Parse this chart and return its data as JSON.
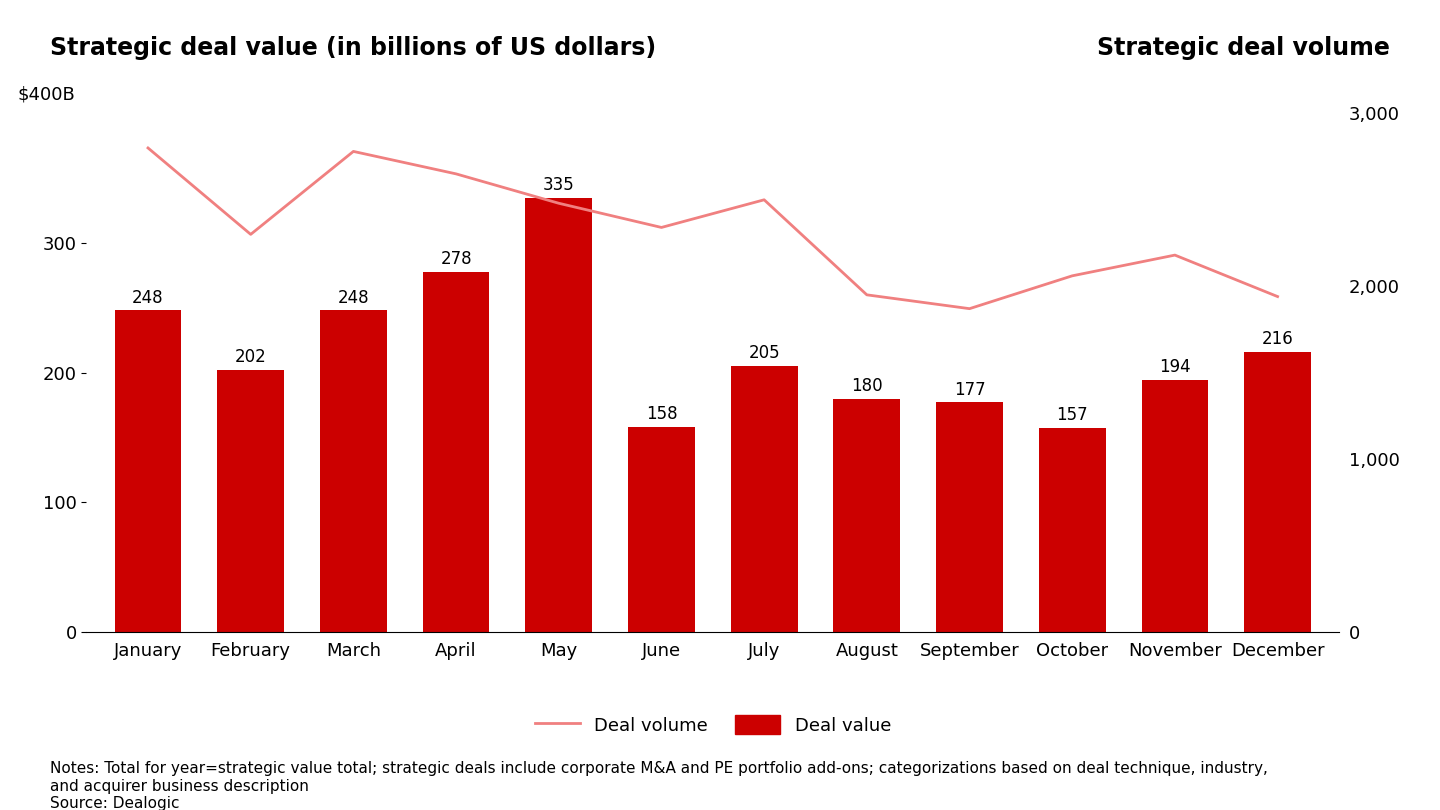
{
  "months": [
    "January",
    "February",
    "March",
    "April",
    "May",
    "June",
    "July",
    "August",
    "September",
    "October",
    "November",
    "December"
  ],
  "deal_value": [
    248,
    202,
    248,
    278,
    335,
    158,
    205,
    180,
    177,
    157,
    194,
    216
  ],
  "deal_volume": [
    2800,
    2300,
    2780,
    2650,
    2480,
    2340,
    2500,
    1950,
    1870,
    2060,
    2180,
    1940
  ],
  "bar_color": "#cc0000",
  "line_color": "#f08080",
  "title_left": "Strategic deal value (in billions of US dollars)",
  "title_right": "Strategic deal volume",
  "ylabel_annotation": "$400B",
  "left_yticks": [
    0,
    100,
    200,
    300
  ],
  "right_yticks": [
    0,
    1000,
    2000,
    3000
  ],
  "left_ylim": [
    0,
    400
  ],
  "right_ylim": [
    0,
    3000
  ],
  "notes": "Notes: Total for year=strategic value total; strategic deals include corporate M&A and PE portfolio add-ons; categorizations based on deal technique, industry,\nand acquirer business description\nSource: Dealogic",
  "legend_line_label": "Deal volume",
  "legend_bar_label": "Deal value",
  "background_color": "#ffffff",
  "title_fontsize": 17,
  "tick_fontsize": 13,
  "annotation_fontsize": 12,
  "notes_fontsize": 11
}
